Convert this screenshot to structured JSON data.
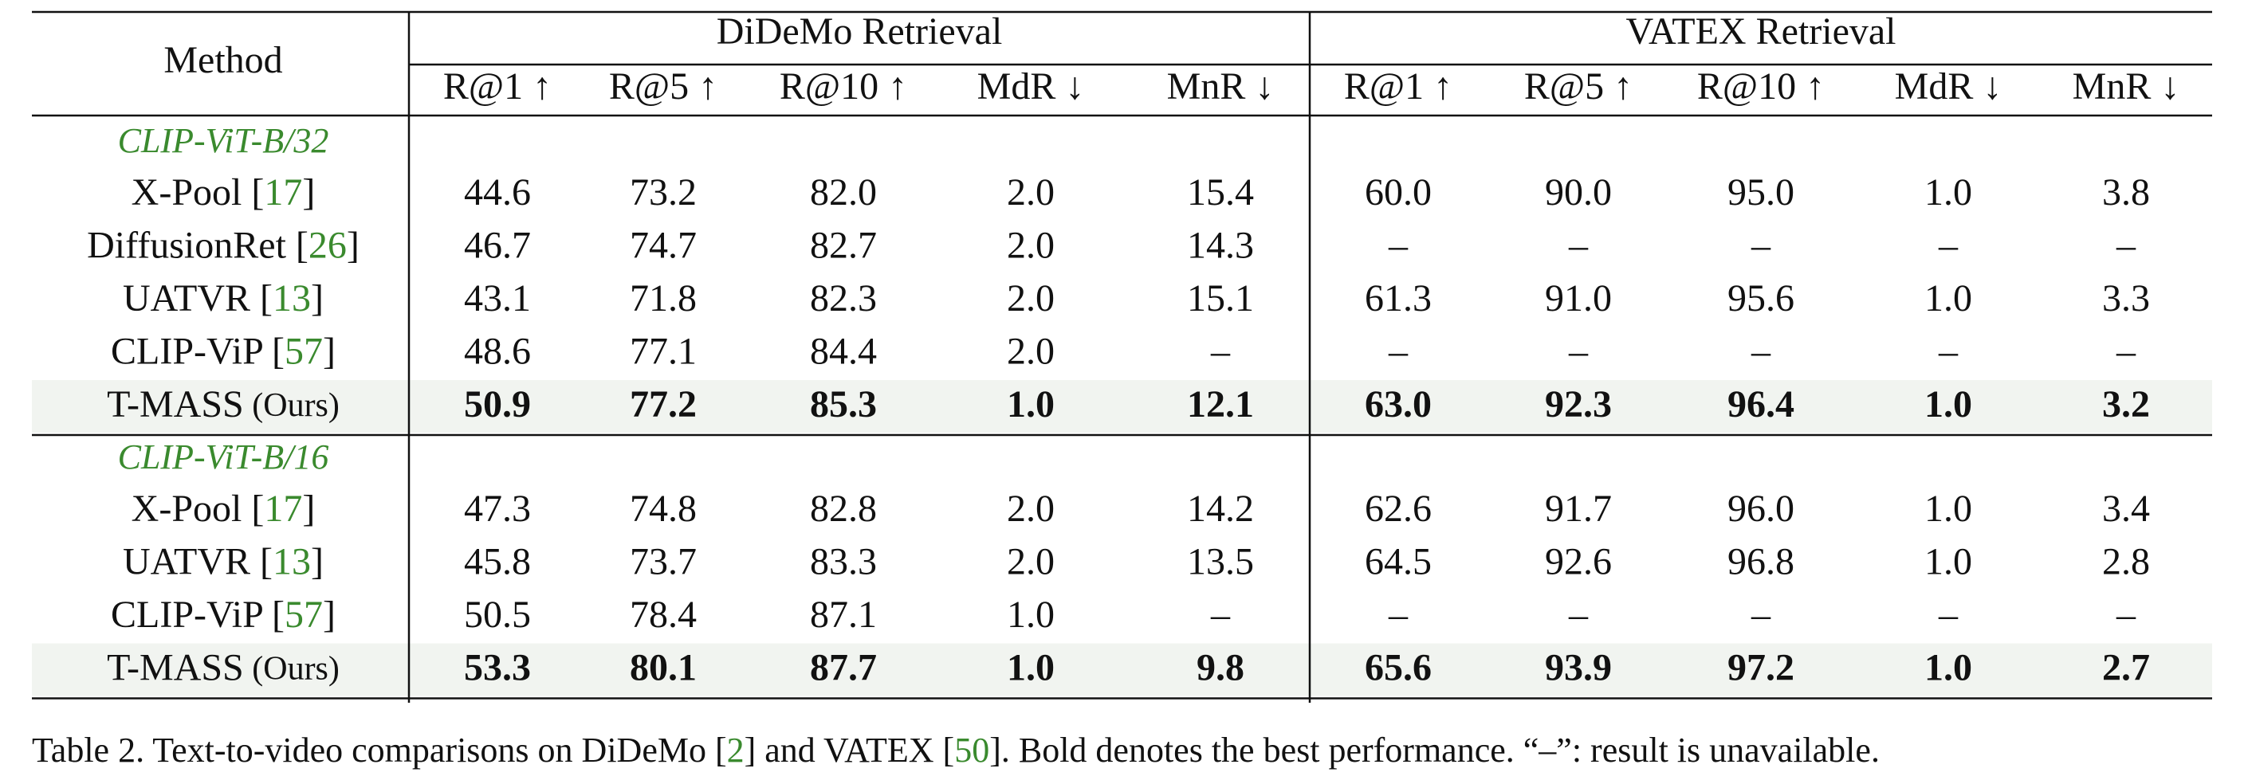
{
  "table": {
    "method_header": "Method",
    "groups": [
      "DiDeMo Retrieval",
      "VATEX Retrieval"
    ],
    "columns": [
      "R@1 ↑",
      "R@5 ↑",
      "R@10 ↑",
      "MdR ↓",
      "MnR ↓",
      "R@1 ↑",
      "R@5 ↑",
      "R@10 ↑",
      "MdR ↓",
      "MnR ↓"
    ],
    "sections": [
      {
        "label": "CLIP-ViT-B/32",
        "rows": [
          {
            "method": [
              "X-Pool [",
              "17",
              "]"
            ],
            "highlight": false,
            "cells": [
              "44.6",
              "73.2",
              "82.0",
              "2.0",
              "15.4",
              "60.0",
              "90.0",
              "95.0",
              "1.0",
              "3.8"
            ]
          },
          {
            "method": [
              "DiffusionRet [",
              "26",
              "]"
            ],
            "highlight": false,
            "cells": [
              "46.7",
              "74.7",
              "82.7",
              "2.0",
              "14.3",
              "–",
              "–",
              "–",
              "–",
              "–"
            ]
          },
          {
            "method": [
              "UATVR [",
              "13",
              "]"
            ],
            "highlight": false,
            "cells": [
              "43.1",
              "71.8",
              "82.3",
              "2.0",
              "15.1",
              "61.3",
              "91.0",
              "95.6",
              "1.0",
              "3.3"
            ]
          },
          {
            "method": [
              "CLIP-ViP [",
              "57",
              "]"
            ],
            "highlight": false,
            "cells": [
              "48.6",
              "77.1",
              "84.4",
              "2.0",
              "–",
              "–",
              "–",
              "–",
              "–",
              "–"
            ]
          },
          {
            "method": [
              "T-MASS",
              " (Ours)"
            ],
            "highlight": true,
            "cells": [
              "50.9",
              "77.2",
              "85.3",
              "1.0",
              "12.1",
              "63.0",
              "92.3",
              "96.4",
              "1.0",
              "3.2"
            ]
          }
        ]
      },
      {
        "label": "CLIP-ViT-B/16",
        "rows": [
          {
            "method": [
              "X-Pool [",
              "17",
              "]"
            ],
            "highlight": false,
            "cells": [
              "47.3",
              "74.8",
              "82.8",
              "2.0",
              "14.2",
              "62.6",
              "91.7",
              "96.0",
              "1.0",
              "3.4"
            ]
          },
          {
            "method": [
              "UATVR [",
              "13",
              "]"
            ],
            "highlight": false,
            "cells": [
              "45.8",
              "73.7",
              "83.3",
              "2.0",
              "13.5",
              "64.5",
              "92.6",
              "96.8",
              "1.0",
              "2.8"
            ]
          },
          {
            "method": [
              "CLIP-ViP [",
              "57",
              "]"
            ],
            "highlight": false,
            "cells": [
              "50.5",
              "78.4",
              "87.1",
              "1.0",
              "–",
              "–",
              "–",
              "–",
              "–",
              "–"
            ]
          },
          {
            "method": [
              "T-MASS",
              " (Ours)"
            ],
            "highlight": true,
            "cells": [
              "53.3",
              "80.1",
              "87.7",
              "1.0",
              "9.8",
              "65.6",
              "93.9",
              "97.2",
              "1.0",
              "2.7"
            ]
          }
        ]
      }
    ]
  },
  "caption": [
    "Table 2. Text-to-video comparisons on DiDeMo [",
    "2",
    "] and VATEX [",
    "50",
    "]. Bold denotes the best performance. “–”: result is unavailable."
  ]
}
